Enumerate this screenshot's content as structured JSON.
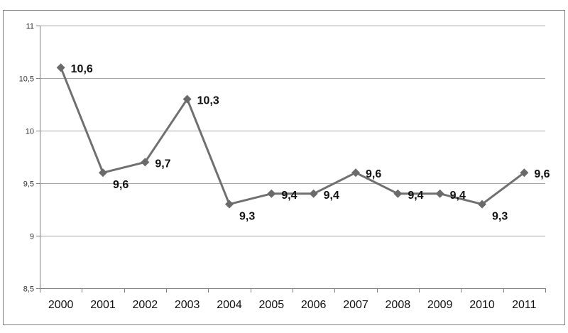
{
  "chart_data": {
    "type": "line",
    "title": "",
    "xlabel": "",
    "ylabel": "",
    "categories": [
      "2000",
      "2001",
      "2002",
      "2003",
      "2004",
      "2005",
      "2006",
      "2007",
      "2008",
      "2009",
      "2010",
      "2011"
    ],
    "values": [
      10.6,
      9.6,
      9.7,
      10.3,
      9.3,
      9.4,
      9.4,
      9.6,
      9.4,
      9.4,
      9.3,
      9.6
    ],
    "data_labels": [
      "10,6",
      "9,6",
      "9,7",
      "10,3",
      "9,3",
      "9,4",
      "9,4",
      "9,6",
      "9,4",
      "9,4",
      "9,3",
      "9,6"
    ],
    "ylim": [
      8.5,
      11
    ],
    "yticks": [
      8.5,
      9,
      9.5,
      10,
      10.5,
      11
    ],
    "ytick_labels": [
      "8,5",
      "9",
      "9,5",
      "10",
      "10,5",
      "11"
    ],
    "grid": true,
    "legend": "none",
    "marker": "diamond",
    "colors": {
      "line": "#707070",
      "marker": "#6a6a6a",
      "grid": "#a6a6a6",
      "frame": "#7f7f7f"
    }
  }
}
